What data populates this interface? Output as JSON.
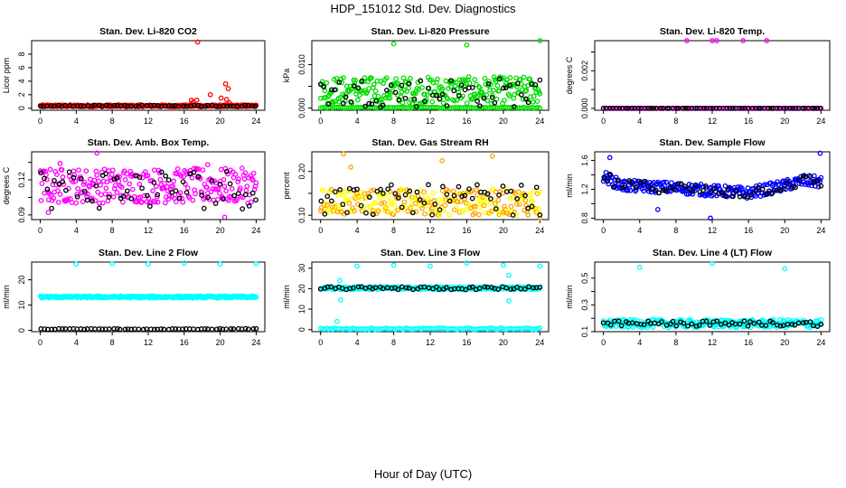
{
  "title": "HDP_151012  Std. Dev. Diagnostics",
  "xlabel": "Hour of Day (UTC)",
  "chart_data": [
    {
      "type": "scatter",
      "title": "Stan. Dev. Li-820 CO2",
      "ylabel": "Licor ppm",
      "ylim": [
        -0.3,
        10
      ],
      "yticks": [
        0,
        2,
        4,
        6,
        8
      ],
      "ylabels": [
        "0",
        "2",
        "4",
        "6",
        "8"
      ],
      "color": "#ff0000",
      "band": [
        0.2,
        0.5
      ],
      "band2": null,
      "black": [
        0.25,
        0.45
      ],
      "trend": null,
      "outliers": [
        [
          17.5,
          9.8
        ],
        [
          16.8,
          1.2
        ],
        [
          17.4,
          1.2
        ],
        [
          18.9,
          2.0
        ],
        [
          20.1,
          1.5
        ],
        [
          20.6,
          3.6
        ],
        [
          20.9,
          2.9
        ],
        [
          20.7,
          1.3
        ],
        [
          17,
          0.9
        ],
        [
          21,
          0.8
        ]
      ]
    },
    {
      "type": "scatter",
      "title": "Stan. Dev. Li-820 Pressure",
      "ylabel": "kPa",
      "ylim": [
        -0.0005,
        0.0155
      ],
      "yticks": [
        0,
        0.005,
        0.01
      ],
      "ylabels": [
        "0.000",
        "",
        "0.010"
      ],
      "color": "#00dd00",
      "band": [
        0.001,
        0.0072
      ],
      "band2": [
        0,
        0.0002
      ],
      "black": [
        0.0002,
        0.007
      ],
      "trend": null,
      "outliers": [
        [
          8,
          0.0148
        ],
        [
          16,
          0.0145
        ],
        [
          24,
          0.0155
        ]
      ]
    },
    {
      "type": "scatter",
      "title": "Stan. Dev. Li-820 Temp.",
      "ylabel": "degrees C",
      "ylim": [
        -0.0001,
        0.0036
      ],
      "yticks": [
        0,
        0.001,
        0.002,
        0.003
      ],
      "ylabels": [
        "0.000",
        "",
        "0.002",
        ""
      ],
      "color": "#ff00ff",
      "band": [
        0,
        0
      ],
      "band2": null,
      "black": [
        0,
        0
      ],
      "trend": null,
      "outliers": [
        [
          9.2,
          0.0036
        ],
        [
          12,
          0.0036
        ],
        [
          12.5,
          0.0036
        ],
        [
          15.4,
          0.0036
        ],
        [
          18,
          0.0036
        ]
      ]
    },
    {
      "type": "scatter",
      "title": "Stan. Dev. Amb. Box Temp.",
      "ylabel": "degrees C",
      "ylim": [
        0.086,
        0.144
      ],
      "yticks": [
        0.09,
        0.105,
        0.12,
        0.135
      ],
      "ylabels": [
        "0.09",
        "",
        "0.12",
        ""
      ],
      "color": "#ff00ff",
      "band": [
        0.1,
        0.13
      ],
      "band2": null,
      "black": [
        0.095,
        0.13
      ],
      "trend": null,
      "outliers": [
        [
          6.3,
          0.143
        ],
        [
          2.2,
          0.134
        ],
        [
          0.9,
          0.092
        ],
        [
          20.5,
          0.088
        ],
        [
          18.6,
          0.133
        ]
      ]
    },
    {
      "type": "scatter",
      "title": "Stan. Dev. Gas Stream RH",
      "ylabel": "percent",
      "ylim": [
        0.09,
        0.245
      ],
      "yticks": [
        0.1,
        0.15,
        0.2
      ],
      "ylabels": [
        "0.10",
        "",
        "0.20"
      ],
      "color": "#ffa500",
      "color2": "#ffff00",
      "band": [
        0.1,
        0.16
      ],
      "band2": null,
      "black": [
        0.1,
        0.17
      ],
      "trend": null,
      "outliers": [
        [
          2.5,
          0.24
        ],
        [
          13.3,
          0.225
        ],
        [
          18.8,
          0.235
        ],
        [
          3.3,
          0.21
        ],
        [
          24,
          0.093
        ]
      ]
    },
    {
      "type": "scatter",
      "title": "Stan. Dev. Sample Flow",
      "ylabel": "ml/min",
      "ylim": [
        0.78,
        1.72
      ],
      "yticks": [
        0.8,
        1.0,
        1.2,
        1.4,
        1.6
      ],
      "ylabels": [
        "0.8",
        "",
        "1.2",
        "",
        "1.6"
      ],
      "color": "#0000ff",
      "band": [
        -0.08,
        0.08
      ],
      "band2": null,
      "black": [
        -0.08,
        0.08
      ],
      "trend": [
        [
          0,
          1.38
        ],
        [
          2,
          1.25
        ],
        [
          8,
          1.22
        ],
        [
          12,
          1.18
        ],
        [
          16,
          1.15
        ],
        [
          20,
          1.25
        ],
        [
          22,
          1.32
        ],
        [
          24,
          1.3
        ]
      ],
      "outliers": [
        [
          23.9,
          1.7
        ],
        [
          6,
          0.92
        ],
        [
          11.8,
          0.8
        ],
        [
          0.7,
          1.64
        ]
      ]
    },
    {
      "type": "scatter",
      "title": "Stan. Dev. Line 2 Flow",
      "ylabel": "ml/min",
      "ylim": [
        -0.5,
        27
      ],
      "yticks": [
        0,
        10,
        20
      ],
      "ylabels": [
        "0",
        "10",
        "20"
      ],
      "color": "#00ffff",
      "band": [
        12.8,
        13.6
      ],
      "band2": null,
      "black": [
        0.4,
        0.7
      ],
      "trend": null,
      "outliers": [
        [
          4,
          26.2
        ],
        [
          8,
          26.4
        ],
        [
          12,
          26.2
        ],
        [
          16,
          26.6
        ],
        [
          20,
          26.2
        ],
        [
          24,
          26.4
        ]
      ]
    },
    {
      "type": "scatter",
      "title": "Stan. Dev. Line 3 Flow",
      "ylabel": "ml/min",
      "ylim": [
        -1,
        33
      ],
      "yticks": [
        0,
        10,
        20,
        30
      ],
      "ylabels": [
        "0",
        "10",
        "20",
        "30"
      ],
      "color": "#00ffff",
      "band": [
        19.5,
        21
      ],
      "band2": [
        0,
        0.8
      ],
      "black": [
        19.5,
        21
      ],
      "trend": null,
      "outliers": [
        [
          4,
          31
        ],
        [
          8,
          31.5
        ],
        [
          12,
          31
        ],
        [
          16,
          32.5
        ],
        [
          20,
          31.5
        ],
        [
          24,
          31
        ],
        [
          2.1,
          24
        ],
        [
          2.2,
          14.5
        ],
        [
          1.8,
          4
        ],
        [
          20.6,
          26.5
        ],
        [
          20.6,
          14
        ]
      ]
    },
    {
      "type": "scatter",
      "title": "Stan. Dev. Line 4 (LT) Flow",
      "ylabel": "ml/min",
      "ylim": [
        0.1,
        0.62
      ],
      "yticks": [
        0.1,
        0.2,
        0.3,
        0.4,
        0.5
      ],
      "ylabels": [
        "0.1",
        "",
        "0.3",
        "",
        "0.5"
      ],
      "color": "#00ffff",
      "band": [
        0.13,
        0.19
      ],
      "band2": null,
      "black": [
        0.14,
        0.18
      ],
      "trend": null,
      "outliers": [
        [
          4,
          0.58
        ],
        [
          12,
          0.61
        ],
        [
          20,
          0.57
        ]
      ]
    }
  ],
  "xticks": [
    0,
    4,
    8,
    12,
    16,
    20,
    24
  ]
}
